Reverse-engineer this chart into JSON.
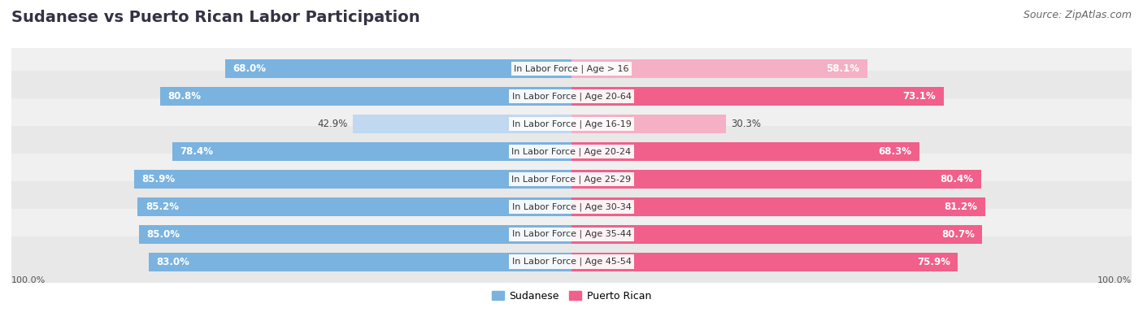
{
  "title": "Sudanese vs Puerto Rican Labor Participation",
  "source": "Source: ZipAtlas.com",
  "categories": [
    "In Labor Force | Age > 16",
    "In Labor Force | Age 20-64",
    "In Labor Force | Age 16-19",
    "In Labor Force | Age 20-24",
    "In Labor Force | Age 25-29",
    "In Labor Force | Age 30-34",
    "In Labor Force | Age 35-44",
    "In Labor Force | Age 45-54"
  ],
  "sudanese": [
    68.0,
    80.8,
    42.9,
    78.4,
    85.9,
    85.2,
    85.0,
    83.0
  ],
  "puerto_rican": [
    58.1,
    73.1,
    30.3,
    68.3,
    80.4,
    81.2,
    80.7,
    75.9
  ],
  "sudanese_color": "#7ab3df",
  "sudanese_color_light": "#c0d8f0",
  "puerto_rican_color": "#f0608a",
  "puerto_rican_color_light": "#f5b0c5",
  "row_bg_even": "#f0f0f0",
  "row_bg_odd": "#e8e8e8",
  "max_val": 100.0,
  "legend_sudanese": "Sudanese",
  "legend_puerto_rican": "Puerto Rican",
  "title_fontsize": 14,
  "source_fontsize": 9,
  "bar_label_fontsize": 8.5,
  "cat_label_fontsize": 8.0,
  "bar_height": 0.68,
  "figsize": [
    14.06,
    3.95
  ],
  "dpi": 100
}
